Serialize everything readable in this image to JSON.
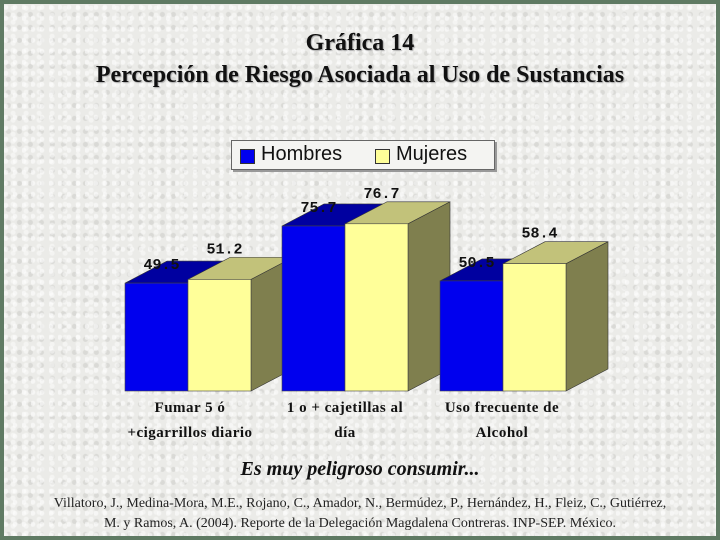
{
  "title_line1": "Gráfica 14",
  "title_line2": "Percepción de Riesgo Asociada al Uso de Sustancias",
  "subtitle": "Es muy peligroso consumir...",
  "source_line1": "Villatoro, J., Medina-Mora, M.E., Rojano, C., Amador, N., Bermúdez, P., Hernández, H., Fleiz, C., Gutiérrez,",
  "source_line2": "M. y Ramos, A. (2004). Reporte de la Delegación Magdalena Contreras. INP-SEP. México.",
  "chart_data": {
    "type": "bar",
    "categories": [
      [
        "Fumar 5 ó",
        "+cigarrillos diario"
      ],
      [
        "1 o + cajetillas al",
        "día"
      ],
      [
        "Uso frecuente de",
        "Alcohol"
      ]
    ],
    "series": [
      {
        "name": "Hombres",
        "values": [
          49.5,
          75.7,
          50.5
        ],
        "labels": [
          "49.5",
          "75.7",
          "50.5"
        ],
        "color": "#0000ee"
      },
      {
        "name": "Mujeres",
        "values": [
          51.2,
          76.7,
          58.4
        ],
        "labels": [
          "51.2",
          "76.7",
          "58.4"
        ],
        "color": "#ffff99"
      }
    ],
    "legend_position": "top-center",
    "style": "3d-bar",
    "grid": false
  }
}
